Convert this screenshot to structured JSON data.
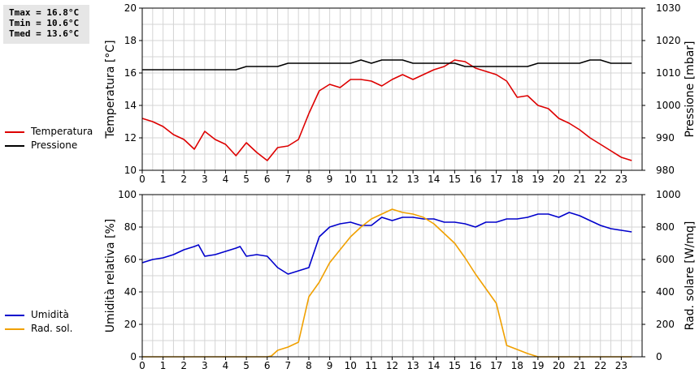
{
  "stats": {
    "tmax": "Tmax = 16.8°C",
    "tmin": "Tmin = 10.6°C",
    "tmed": "Tmed = 13.6°C"
  },
  "legend_top": [
    {
      "label": "Temperatura",
      "color": "#dd0000"
    },
    {
      "label": "Pressione",
      "color": "#000000"
    }
  ],
  "legend_bottom": [
    {
      "label": "Umidità",
      "color": "#0000cc"
    },
    {
      "label": "Rad. sol.",
      "color": "#f0a000"
    }
  ],
  "chart_data": [
    {
      "type": "line",
      "xlim": [
        0,
        24
      ],
      "xticks": [
        0,
        1,
        2,
        3,
        4,
        5,
        6,
        7,
        8,
        9,
        10,
        11,
        12,
        13,
        14,
        15,
        16,
        17,
        18,
        19,
        20,
        21,
        22,
        23
      ],
      "ylabel": "Temperatura [°C]",
      "ylim": [
        10,
        20
      ],
      "yticks": [
        10,
        12,
        14,
        16,
        18,
        20
      ],
      "y2label": "Pressione [mbar]",
      "y2lim": [
        980,
        1030
      ],
      "y2ticks": [
        980,
        990,
        1000,
        1010,
        1020,
        1030
      ],
      "grid": true,
      "series": [
        {
          "name": "Temperatura",
          "axis": "left",
          "color": "#dd0000",
          "x": [
            0,
            0.5,
            1,
            1.5,
            2,
            2.5,
            3,
            3.5,
            4,
            4.5,
            5,
            5.5,
            6,
            6.5,
            7,
            7.5,
            8,
            8.5,
            9,
            9.5,
            10,
            10.5,
            11,
            11.5,
            12,
            12.5,
            13,
            13.5,
            14,
            14.5,
            15,
            15.5,
            16,
            16.5,
            17,
            17.5,
            18,
            18.5,
            19,
            19.5,
            20,
            20.5,
            21,
            21.5,
            22,
            22.5,
            23,
            23.5
          ],
          "values": [
            13.2,
            13.0,
            12.7,
            12.2,
            11.9,
            11.3,
            12.4,
            11.9,
            11.6,
            10.9,
            11.7,
            11.1,
            10.6,
            11.4,
            11.5,
            11.9,
            13.5,
            14.9,
            15.3,
            15.1,
            15.6,
            15.6,
            15.5,
            15.2,
            15.6,
            15.9,
            15.6,
            15.9,
            16.2,
            16.4,
            16.8,
            16.7,
            16.3,
            16.1,
            15.9,
            15.5,
            14.5,
            14.6,
            14.0,
            13.8,
            13.2,
            12.9,
            12.5,
            12.0,
            11.6,
            11.2,
            10.8,
            10.6
          ]
        },
        {
          "name": "Pressione",
          "axis": "right",
          "color": "#000000",
          "x": [
            0,
            4.5,
            5,
            6.5,
            7,
            10,
            10.5,
            11,
            11.5,
            12.5,
            13,
            15,
            15.5,
            18.5,
            19,
            21,
            21.5,
            22,
            22.5,
            23.5
          ],
          "values": [
            1011,
            1011,
            1012,
            1012,
            1013,
            1013,
            1014,
            1013,
            1014,
            1014,
            1013,
            1013,
            1012,
            1012,
            1013,
            1013,
            1014,
            1014,
            1013,
            1013
          ]
        }
      ]
    },
    {
      "type": "line",
      "xlim": [
        0,
        24
      ],
      "xticks": [
        0,
        1,
        2,
        3,
        4,
        5,
        6,
        7,
        8,
        9,
        10,
        11,
        12,
        13,
        14,
        15,
        16,
        17,
        18,
        19,
        20,
        21,
        22,
        23
      ],
      "ylabel": "Umidità relativa [%]",
      "ylim": [
        0,
        100
      ],
      "yticks": [
        0,
        20,
        40,
        60,
        80,
        100
      ],
      "y2label": "Rad. solare [W/mq]",
      "y2lim": [
        0,
        1000
      ],
      "y2ticks": [
        0,
        200,
        400,
        600,
        800,
        1000
      ],
      "grid": true,
      "series": [
        {
          "name": "Umidità",
          "axis": "left",
          "color": "#0000cc",
          "x": [
            0,
            0.5,
            1,
            1.5,
            2,
            2.5,
            2.7,
            3,
            3.5,
            4,
            4.5,
            4.7,
            5,
            5.5,
            6,
            6.5,
            7,
            7.5,
            8,
            8.5,
            9,
            9.5,
            10,
            10.5,
            11,
            11.5,
            12,
            12.5,
            13,
            13.5,
            14,
            14.5,
            15,
            15.5,
            16,
            16.5,
            17,
            17.5,
            18,
            18.5,
            19,
            19.5,
            20,
            20.5,
            21,
            21.5,
            22,
            22.5,
            23,
            23.5
          ],
          "values": [
            58,
            60,
            61,
            63,
            66,
            68,
            69,
            62,
            63,
            65,
            67,
            68,
            62,
            63,
            62,
            55,
            51,
            53,
            55,
            74,
            80,
            82,
            83,
            81,
            81,
            86,
            84,
            86,
            86,
            85,
            85,
            83,
            83,
            82,
            80,
            83,
            83,
            85,
            85,
            86,
            88,
            88,
            86,
            89,
            87,
            84,
            81,
            79,
            78,
            77
          ]
        },
        {
          "name": "Rad. sol.",
          "axis": "right",
          "color": "#f0a000",
          "x": [
            0,
            6,
            6.2,
            6.5,
            7,
            7.5,
            8,
            8.5,
            9,
            9.5,
            10,
            10.5,
            11,
            11.5,
            12,
            12.5,
            13,
            13.5,
            14,
            14.5,
            15,
            15.5,
            16,
            16.5,
            17,
            17.5,
            18,
            18.5,
            19,
            19.5,
            20,
            21,
            22,
            23,
            23.5
          ],
          "values": [
            0,
            0,
            5,
            40,
            60,
            90,
            370,
            460,
            580,
            660,
            740,
            800,
            850,
            880,
            910,
            890,
            880,
            860,
            820,
            760,
            700,
            610,
            510,
            420,
            330,
            70,
            45,
            20,
            0,
            0,
            0,
            0,
            0,
            0,
            0
          ]
        }
      ]
    }
  ]
}
